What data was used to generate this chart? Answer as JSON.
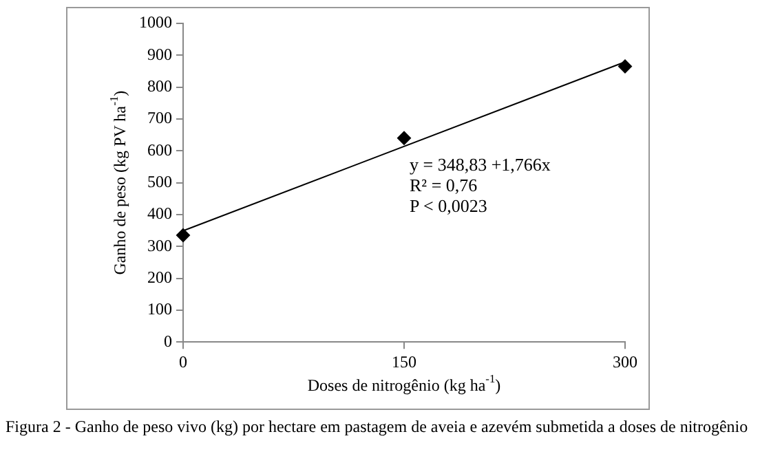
{
  "chart_data": {
    "type": "scatter",
    "title": "Figura 2 - Ganho de peso vivo (kg) por hectare em pastagem de aveia e azevém submetida a doses de nitrogênio",
    "xlabel": "Doses de nitrogênio (kg ha$^{-1}$)",
    "ylabel": "Ganho de peso (kg PV ha$^{-1}$)",
    "x": [
      0,
      150,
      300
    ],
    "series": [
      {
        "type": "scatter",
        "color": "#000000",
        "marker": "diamond",
        "values": [
          335,
          640,
          865
        ]
      },
      {
        "type": "line",
        "color": "#000000",
        "marker": "none",
        "line_style": "solid",
        "x": [
          0,
          300
        ],
        "values": [
          349,
          879
        ]
      }
    ],
    "xlim": [
      0,
      300
    ],
    "xticks": [
      0,
      150,
      300
    ],
    "ylim": [
      0,
      1000
    ],
    "yticks": [
      0,
      100,
      200,
      300,
      400,
      500,
      600,
      700,
      800,
      900,
      1000
    ],
    "grid": false,
    "legend": false,
    "annotations": [
      "y = 348,83 +1,766x",
      "R² = 0,76",
      "P < 0,0023"
    ]
  }
}
